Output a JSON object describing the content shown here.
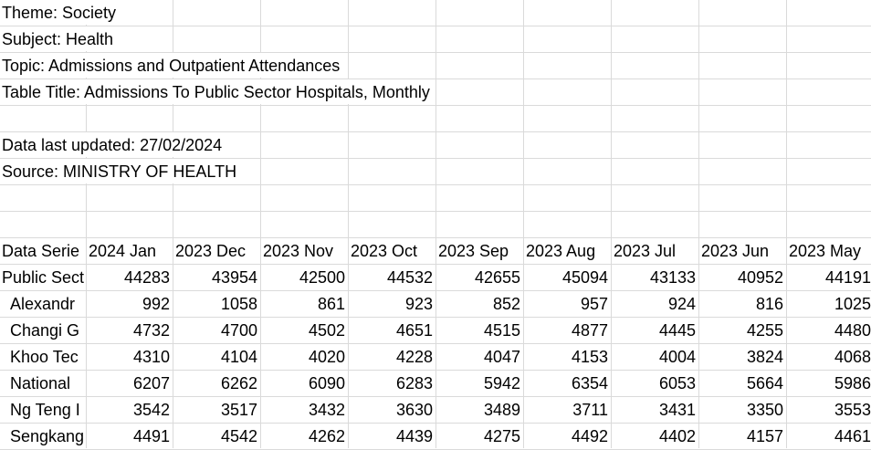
{
  "header": {
    "theme": "Theme: Society",
    "subject": "Subject: Health",
    "topic": "Topic: Admissions and Outpatient Attendances",
    "table_title": "Table Title: Admissions To Public Sector Hospitals, Monthly",
    "updated": "Data last updated: 27/02/2024",
    "source": "Source: MINISTRY OF HEALTH"
  },
  "table": {
    "corner": "Data Serie",
    "columns": [
      "2024 Jan",
      "2023 Dec",
      "2023 Nov",
      "2023 Oct",
      "2023 Sep",
      "2023 Aug",
      "2023 Jul",
      "2023 Jun",
      "2023 May"
    ],
    "rows": [
      {
        "label": "Public Sect",
        "values": [
          44283,
          43954,
          42500,
          44532,
          42655,
          45094,
          43133,
          40952,
          44191
        ]
      },
      {
        "label": "Alexandr",
        "values": [
          992,
          1058,
          861,
          923,
          852,
          957,
          924,
          816,
          1025
        ]
      },
      {
        "label": "Changi G",
        "values": [
          4732,
          4700,
          4502,
          4651,
          4515,
          4877,
          4445,
          4255,
          4480
        ]
      },
      {
        "label": "Khoo Tec",
        "values": [
          4310,
          4104,
          4020,
          4228,
          4047,
          4153,
          4004,
          3824,
          4068
        ]
      },
      {
        "label": "National",
        "values": [
          6207,
          6262,
          6090,
          6283,
          5942,
          6354,
          6053,
          5664,
          5986
        ]
      },
      {
        "label": "Ng Teng I",
        "values": [
          3542,
          3517,
          3432,
          3630,
          3489,
          3711,
          3431,
          3350,
          3553
        ]
      },
      {
        "label": "Sengkang",
        "values": [
          4491,
          4542,
          4262,
          4439,
          4275,
          4492,
          4402,
          4157,
          4461
        ]
      }
    ]
  }
}
